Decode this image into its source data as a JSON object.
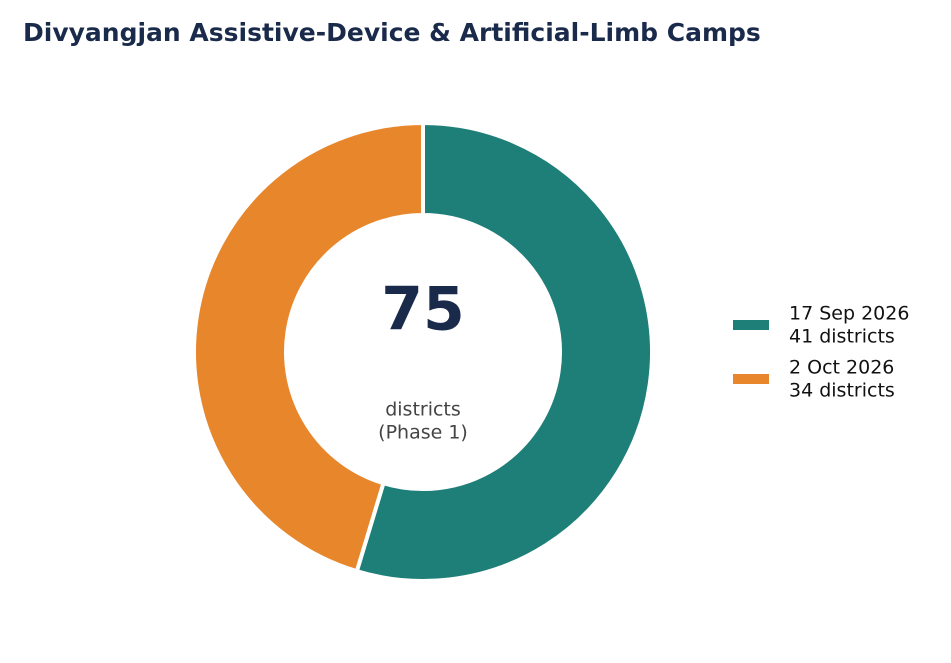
{
  "chart_data": {
    "type": "pie",
    "title": "Divyangjan Assistive-Device & Artificial-Limb Camps",
    "categories": [
      "17 Sep 2026",
      "2 Oct 2026"
    ],
    "values": [
      41,
      34
    ],
    "value_labels": [
      "41 districts",
      "34 districts"
    ],
    "colors": [
      "#1e7f78",
      "#e8862c"
    ],
    "center_value": 75,
    "center_label": [
      "districts",
      "(Phase 1)"
    ],
    "legend": "right"
  }
}
